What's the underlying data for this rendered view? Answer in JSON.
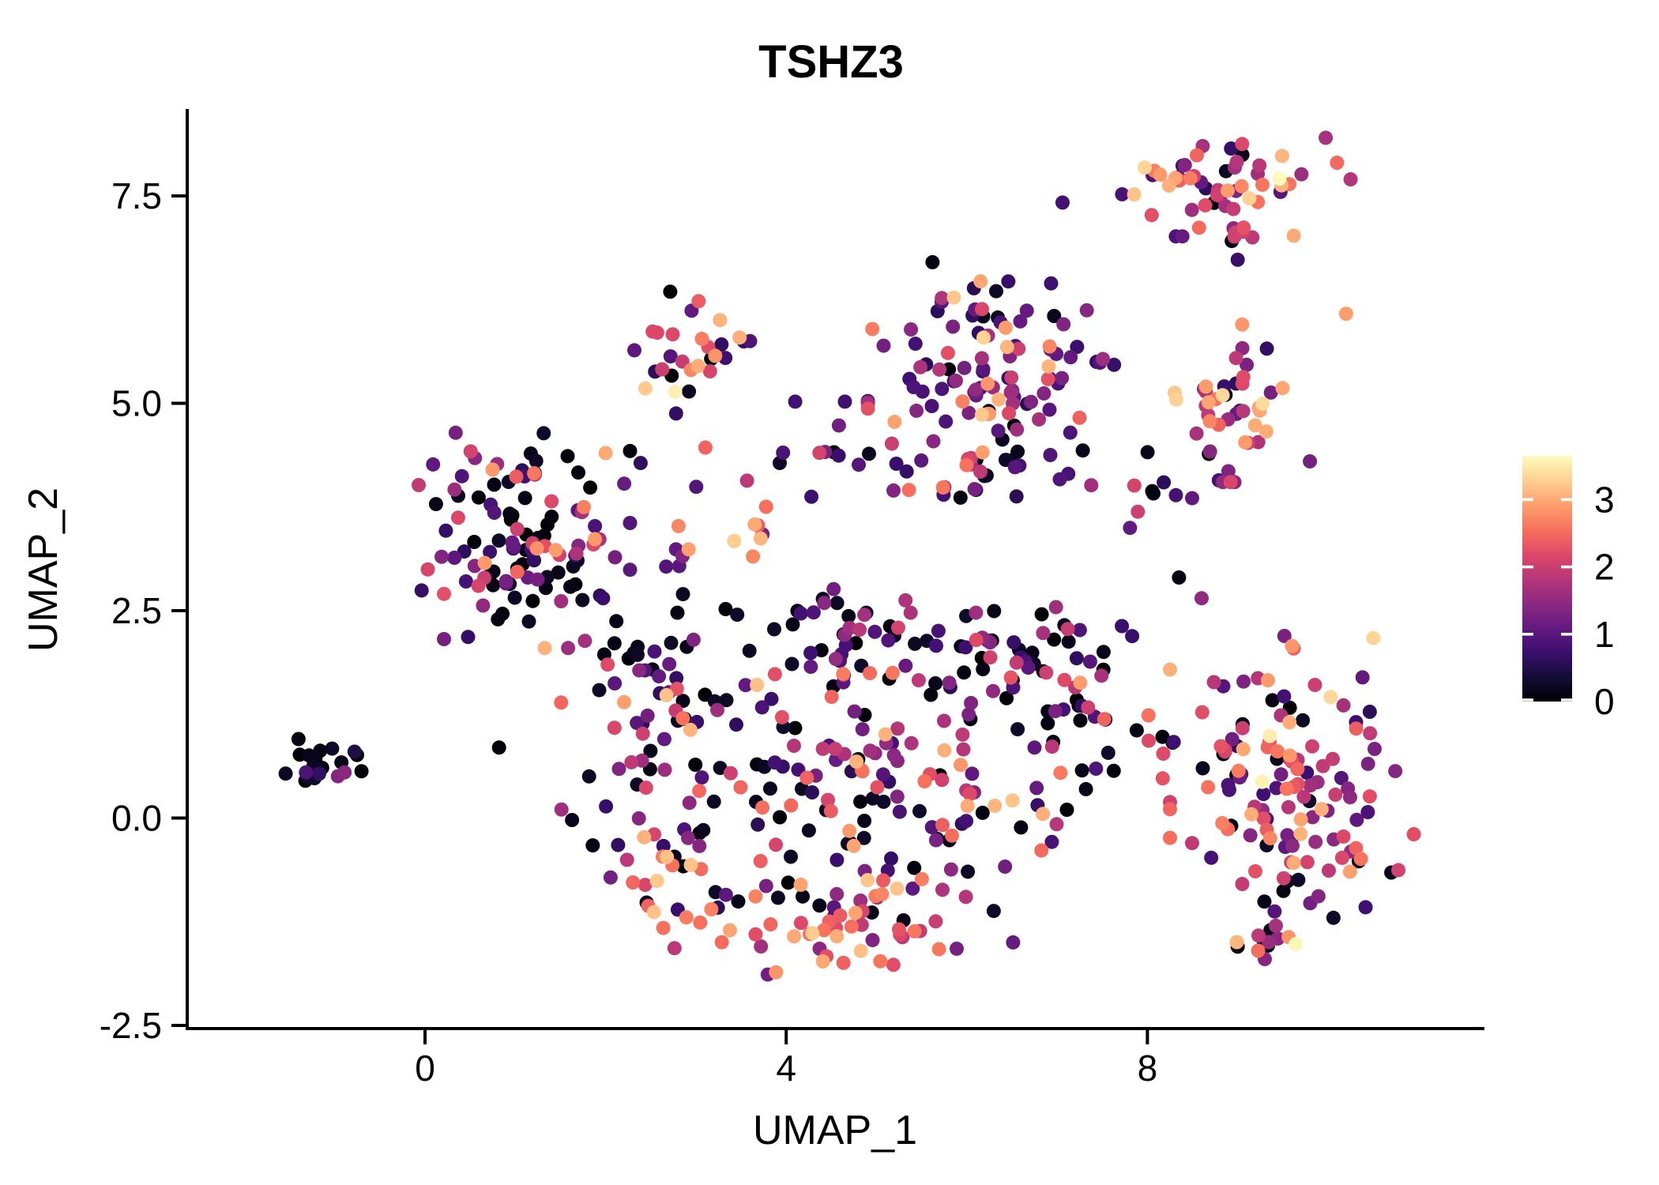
{
  "title": "TSHZ3",
  "axes": {
    "x": {
      "label": "UMAP_1",
      "tick_labels": [
        "0",
        "4",
        "8"
      ],
      "tick_values": [
        0,
        4,
        8
      ],
      "range": [
        -2.63,
        11.72
      ]
    },
    "y": {
      "label": "UMAP_2",
      "tick_labels": [
        "-2.5",
        "0.0",
        "2.5",
        "5.0",
        "7.5"
      ],
      "tick_values": [
        -2.5,
        0.0,
        2.5,
        5.0,
        7.5
      ],
      "range": [
        -2.55,
        8.53
      ]
    }
  },
  "legend": {
    "tick_labels": [
      "0",
      "1",
      "2",
      "3"
    ],
    "tick_values": [
      0,
      1,
      2,
      3
    ]
  },
  "chart_data": {
    "type": "scatter",
    "title": "TSHZ3",
    "xlabel": "UMAP_1",
    "ylabel": "UMAP_2",
    "xlim": [
      -2.63,
      11.72
    ],
    "ylim": [
      -2.55,
      8.53
    ],
    "grid": false,
    "legend_position": "right",
    "point_radius_px": 9,
    "color_scale": {
      "name": "magma",
      "domain": [
        0,
        3.65
      ],
      "stops": [
        [
          0.0,
          "#000004"
        ],
        [
          0.1,
          "#140e36"
        ],
        [
          0.2,
          "#3b0f70"
        ],
        [
          0.3,
          "#641a80"
        ],
        [
          0.4,
          "#8c2981"
        ],
        [
          0.5,
          "#b73779"
        ],
        [
          0.6,
          "#de4968"
        ],
        [
          0.7,
          "#f7705c"
        ],
        [
          0.8,
          "#fe9f6d"
        ],
        [
          0.9,
          "#fecf92"
        ],
        [
          1.0,
          "#fcfdbf"
        ]
      ]
    },
    "expression_bins": {
      "black": [
        0.0,
        0.28
      ],
      "dpurple": [
        0.55,
        1.15
      ],
      "purple": [
        1.2,
        1.75
      ],
      "magenta": [
        1.8,
        2.3
      ],
      "pink": [
        2.35,
        2.75
      ],
      "salmon": [
        2.8,
        3.1
      ],
      "orange": [
        3.15,
        3.4
      ],
      "cream": [
        3.5,
        3.65
      ]
    },
    "clusters": [
      {
        "name": "far-left-black",
        "cx": -1.08,
        "cy": 0.66,
        "sx": 0.21,
        "sy": 0.13,
        "n": 20,
        "seed": 11,
        "mix": {
          "black": 0.78,
          "dpurple": 0.16,
          "purple": 0.06
        }
      },
      {
        "name": "left-mixed",
        "cx": 1.1,
        "cy": 3.4,
        "sx": 0.52,
        "sy": 0.6,
        "n": 115,
        "seed": 12,
        "mix": {
          "black": 0.36,
          "dpurple": 0.26,
          "purple": 0.13,
          "magenta": 0.1,
          "pink": 0.08,
          "salmon": 0.05,
          "orange": 0.02
        }
      },
      {
        "name": "top-middle-small",
        "cx": 2.92,
        "cy": 5.62,
        "sx": 0.3,
        "sy": 0.33,
        "n": 26,
        "seed": 13,
        "mix": {
          "black": 0.07,
          "dpurple": 0.3,
          "purple": 0.16,
          "magenta": 0.15,
          "pink": 0.18,
          "salmon": 0.12,
          "orange": 0.02
        }
      },
      {
        "name": "below-top-middle",
        "cx": 3.35,
        "cy": 3.45,
        "sx": 0.38,
        "sy": 0.3,
        "n": 11,
        "seed": 14,
        "mix": {
          "salmon": 0.2,
          "orange": 0.1,
          "pink": 0.2,
          "magenta": 0.15,
          "purple": 0.15,
          "dpurple": 0.1,
          "black": 0.1
        }
      },
      {
        "name": "mid-bridge-row",
        "cx": 4.4,
        "cy": 4.35,
        "sx": 1.0,
        "sy": 0.28,
        "n": 20,
        "seed": 15,
        "mix": {
          "black": 0.22,
          "dpurple": 0.2,
          "purple": 0.14,
          "magenta": 0.14,
          "pink": 0.14,
          "salmon": 0.12,
          "orange": 0.04
        }
      },
      {
        "name": "upper-center-dark",
        "cx": 6.3,
        "cy": 5.35,
        "sx": 0.62,
        "sy": 0.62,
        "n": 115,
        "seed": 16,
        "mix": {
          "black": 0.09,
          "dpurple": 0.44,
          "purple": 0.26,
          "magenta": 0.08,
          "pink": 0.08,
          "salmon": 0.04,
          "orange": 0.01
        }
      },
      {
        "name": "upper-center-tail",
        "cx": 5.95,
        "cy": 4.15,
        "sx": 0.5,
        "sy": 0.3,
        "n": 13,
        "seed": 17,
        "mix": {
          "black": 0.35,
          "dpurple": 0.35,
          "purple": 0.15,
          "magenta": 0.1,
          "salmon": 0.05
        }
      },
      {
        "name": "top-right-warm",
        "cx": 8.85,
        "cy": 7.62,
        "sx": 0.5,
        "sy": 0.27,
        "n": 52,
        "seed": 18,
        "mix": {
          "black": 0.08,
          "dpurple": 0.17,
          "purple": 0.2,
          "magenta": 0.17,
          "pink": 0.15,
          "salmon": 0.13,
          "orange": 0.07,
          "cream": 0.03
        }
      },
      {
        "name": "top-right-satellite",
        "cx": 9.1,
        "cy": 6.95,
        "sx": 0.15,
        "sy": 0.12,
        "n": 5,
        "seed": 19,
        "mix": {
          "magenta": 0.4,
          "purple": 0.3,
          "black": 0.3
        }
      },
      {
        "name": "right-mid-warm",
        "cx": 8.9,
        "cy": 4.95,
        "sx": 0.4,
        "sy": 0.4,
        "n": 44,
        "seed": 20,
        "mix": {
          "black": 0.09,
          "dpurple": 0.13,
          "purple": 0.18,
          "magenta": 0.16,
          "pink": 0.14,
          "salmon": 0.18,
          "orange": 0.09,
          "cream": 0.03
        }
      },
      {
        "name": "right-mid-trail",
        "cx": 8.15,
        "cy": 3.85,
        "sx": 0.28,
        "sy": 0.3,
        "n": 9,
        "seed": 21,
        "mix": {
          "black": 0.3,
          "dpurple": 0.25,
          "magenta": 0.2,
          "pink": 0.25
        }
      },
      {
        "name": "center-left-arm",
        "cx": 2.55,
        "cy": 1.35,
        "sx": 0.5,
        "sy": 0.75,
        "n": 70,
        "seed": 22,
        "mix": {
          "black": 0.33,
          "dpurple": 0.22,
          "purple": 0.14,
          "magenta": 0.12,
          "pink": 0.1,
          "salmon": 0.07,
          "orange": 0.02
        }
      },
      {
        "name": "center-core",
        "cx": 4.9,
        "cy": 0.45,
        "sx": 0.95,
        "sy": 0.9,
        "n": 150,
        "seed": 23,
        "mix": {
          "black": 0.3,
          "dpurple": 0.23,
          "purple": 0.16,
          "magenta": 0.13,
          "pink": 0.1,
          "salmon": 0.06,
          "orange": 0.02
        }
      },
      {
        "name": "center-black-ridge",
        "cx": 5.6,
        "cy": 1.95,
        "sx": 0.85,
        "sy": 0.38,
        "n": 52,
        "seed": 24,
        "mix": {
          "black": 0.54,
          "dpurple": 0.24,
          "purple": 0.11,
          "magenta": 0.07,
          "pink": 0.04
        }
      },
      {
        "name": "center-right-lobe",
        "cx": 7.0,
        "cy": 1.45,
        "sx": 0.45,
        "sy": 0.6,
        "n": 42,
        "seed": 25,
        "mix": {
          "black": 0.44,
          "dpurple": 0.25,
          "purple": 0.12,
          "magenta": 0.1,
          "pink": 0.05,
          "salmon": 0.04
        }
      },
      {
        "name": "bottom-warm-rim",
        "cx": 4.6,
        "cy": -1.3,
        "sx": 0.85,
        "sy": 0.33,
        "n": 55,
        "seed": 26,
        "mix": {
          "salmon": 0.24,
          "pink": 0.22,
          "orange": 0.07,
          "magenta": 0.18,
          "purple": 0.12,
          "dpurple": 0.09,
          "black": 0.08
        }
      },
      {
        "name": "bottom-left-edge",
        "cx": 2.6,
        "cy": -0.75,
        "sx": 0.33,
        "sy": 0.42,
        "n": 24,
        "seed": 27,
        "mix": {
          "salmon": 0.18,
          "orange": 0.08,
          "pink": 0.15,
          "magenta": 0.15,
          "purple": 0.15,
          "dpurple": 0.12,
          "black": 0.17
        }
      },
      {
        "name": "center-top-connector",
        "cx": 4.3,
        "cy": 2.5,
        "sx": 0.5,
        "sy": 0.2,
        "n": 11,
        "seed": 28,
        "mix": {
          "black": 0.5,
          "dpurple": 0.3,
          "purple": 0.2
        }
      },
      {
        "name": "right-large-mixed",
        "cx": 9.6,
        "cy": 0.35,
        "sx": 0.6,
        "sy": 0.82,
        "n": 135,
        "seed": 29,
        "mix": {
          "black": 0.13,
          "dpurple": 0.2,
          "purple": 0.24,
          "magenta": 0.19,
          "pink": 0.12,
          "salmon": 0.08,
          "orange": 0.03,
          "cream": 0.01
        }
      },
      {
        "name": "right-bottom-straggle",
        "cx": 9.35,
        "cy": -1.55,
        "sx": 0.25,
        "sy": 0.18,
        "n": 7,
        "seed": 30,
        "mix": {
          "purple": 0.3,
          "magenta": 0.25,
          "black": 0.2,
          "pink": 0.1,
          "salmon": 0.05,
          "cream": 0.1
        }
      },
      {
        "name": "center-right-connector",
        "cx": 8.2,
        "cy": 0.7,
        "sx": 0.2,
        "sy": 0.3,
        "n": 6,
        "seed": 31,
        "mix": {
          "black": 0.4,
          "dpurple": 0.2,
          "magenta": 0.2,
          "pink": 0.2
        }
      }
    ],
    "outlier_points": [
      [
        7.06,
        7.42,
        0.8
      ],
      [
        7.72,
        7.52,
        0.85
      ],
      [
        9.0,
        6.73,
        0.7
      ],
      [
        10.2,
        6.08,
        2.9
      ],
      [
        9.62,
        7.02,
        3.0
      ],
      [
        9.05,
        5.95,
        2.85
      ],
      [
        10.25,
        7.7,
        1.8
      ],
      [
        10.1,
        7.9,
        2.5
      ],
      [
        4.1,
        5.02,
        0.8
      ],
      [
        4.65,
        5.02,
        0.75
      ],
      [
        2.44,
        5.18,
        3.25
      ],
      [
        2.77,
        5.14,
        3.55
      ],
      [
        -0.78,
        0.8,
        0.45
      ],
      [
        0.82,
        0.85,
        0.05
      ],
      [
        8.35,
        2.9,
        0.1
      ],
      [
        8.6,
        2.65,
        1.5
      ],
      [
        8.28,
        0.91,
        0.05
      ],
      [
        6.43,
        5.91,
        2.9
      ],
      [
        3.6,
        5.75,
        0.9
      ],
      [
        2.0,
        4.4,
        3.0
      ],
      [
        9.64,
        -1.52,
        3.6
      ],
      [
        9.3,
        -1.7,
        1.4
      ],
      [
        9.0,
        -1.55,
        0.1
      ]
    ]
  }
}
